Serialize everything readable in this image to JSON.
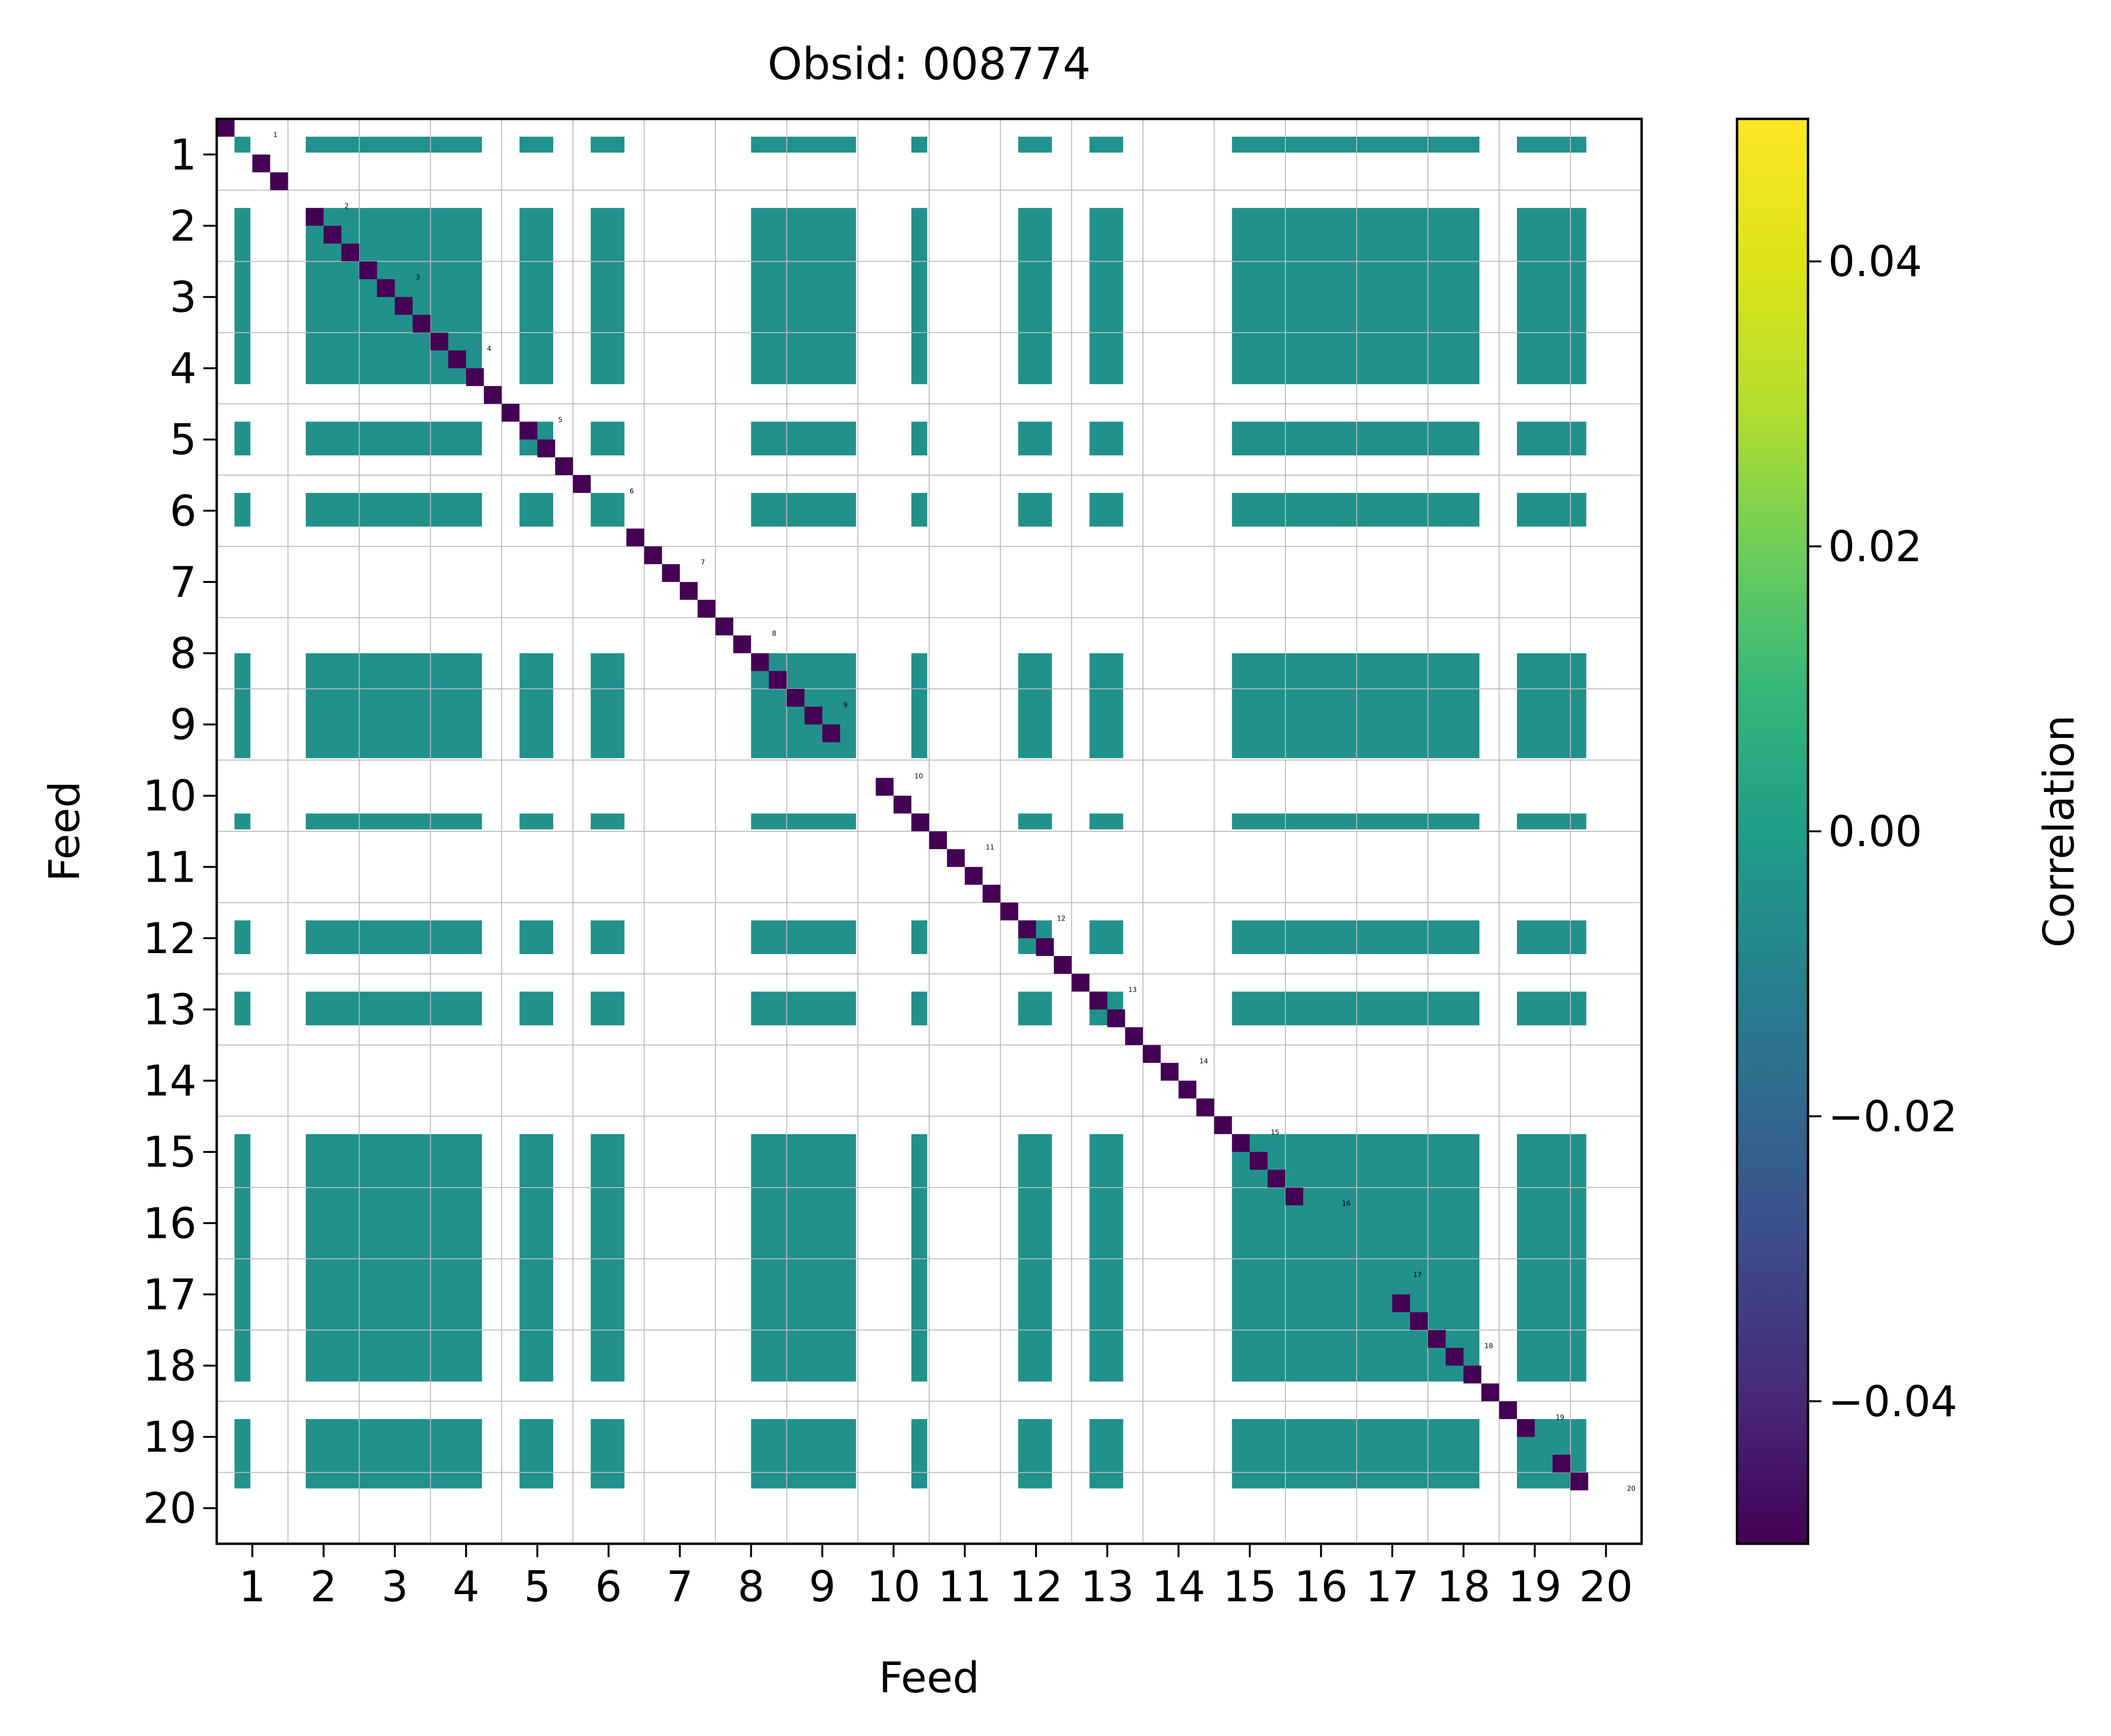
{
  "chart_data": {
    "type": "heatmap",
    "title": "Obsid: 008774",
    "xlabel": "Feed",
    "ylabel": "Feed",
    "x_tick_labels": [
      "1",
      "2",
      "3",
      "4",
      "5",
      "6",
      "7",
      "8",
      "9",
      "10",
      "11",
      "12",
      "13",
      "14",
      "15",
      "16",
      "17",
      "18",
      "19",
      "20"
    ],
    "y_tick_labels": [
      "1",
      "2",
      "3",
      "4",
      "5",
      "6",
      "7",
      "8",
      "9",
      "10",
      "11",
      "12",
      "13",
      "14",
      "15",
      "16",
      "17",
      "18",
      "19",
      "20"
    ],
    "feed_annotations": [
      "1",
      "2",
      "3",
      "4",
      "5",
      "6",
      "7",
      "8",
      "9",
      "10",
      "11",
      "12",
      "13",
      "14",
      "15",
      "16",
      "17",
      "18",
      "19",
      "20"
    ],
    "colorbar": {
      "label": "Correlation",
      "vmin": -0.05,
      "vmax": 0.05,
      "ticks": [
        -0.04,
        -0.02,
        0.0,
        0.02,
        0.04
      ],
      "tick_labels": [
        "−0.04",
        "−0.02",
        "0.00",
        "0.02",
        "0.04"
      ],
      "colormap": "viridis"
    },
    "cells_per_feed": 4,
    "n_feeds": 20,
    "active_block_range": [
      1,
      79
    ],
    "active_blocks": [
      [
        1,
        1
      ],
      [
        5,
        14
      ],
      [
        17,
        18
      ],
      [
        21,
        22
      ],
      [
        30,
        35
      ],
      [
        39,
        39
      ],
      [
        45,
        46
      ],
      [
        49,
        50
      ],
      [
        57,
        70
      ],
      [
        73,
        76
      ]
    ],
    "off_diagonal_value": 0.0,
    "diagonal_value": -0.05,
    "inactive_rows": [
      1,
      4,
      21,
      22,
      35,
      36,
      61,
      62,
      63,
      64,
      65,
      74,
      77,
      78,
      79
    ],
    "colors": {
      "off_diagonal": "#21918c",
      "diagonal": "#440154",
      "grid": "#bbbbbb"
    }
  }
}
